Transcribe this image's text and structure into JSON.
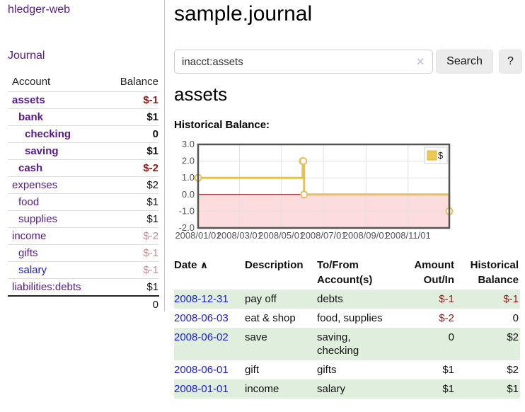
{
  "colors": {
    "link_purple": "#551a8b",
    "link_blue": "#1b1bd3",
    "negative_strong": "#8c1a1a",
    "negative_soft": "#bc8f8f",
    "row_green": "#dfeedd",
    "chart_gold": "#e4c05a",
    "chart_negative_bg": "#fcdcdc",
    "zero_line": "#8b0000"
  },
  "sidebar": {
    "app_title": "hledger-web",
    "nav_journal": "Journal",
    "accounts": {
      "header_account": "Account",
      "header_balance": "Balance",
      "rows": [
        {
          "name": "assets",
          "balance": "$-1",
          "indent": 0,
          "bold": true,
          "name_color": "purple",
          "balance_color": "negative"
        },
        {
          "name": "bank",
          "balance": "$1",
          "indent": 1,
          "bold": true,
          "name_color": "purple",
          "balance_color": "black"
        },
        {
          "name": "checking",
          "balance": "0",
          "indent": 2,
          "bold": true,
          "name_color": "purple",
          "balance_color": "black"
        },
        {
          "name": "saving",
          "balance": "$1",
          "indent": 2,
          "bold": true,
          "name_color": "purple",
          "balance_color": "black"
        },
        {
          "name": "cash",
          "balance": "$-2",
          "indent": 1,
          "bold": true,
          "name_color": "purple",
          "balance_color": "negative"
        },
        {
          "name": "expenses",
          "balance": "$2",
          "indent": 0,
          "bold": false,
          "name_color": "purple",
          "balance_color": "black"
        },
        {
          "name": "food",
          "balance": "$1",
          "indent": 1,
          "bold": false,
          "name_color": "purple",
          "balance_color": "black"
        },
        {
          "name": "supplies",
          "balance": "$1",
          "indent": 1,
          "bold": false,
          "name_color": "purple",
          "balance_color": "black"
        },
        {
          "name": "income",
          "balance": "$-2",
          "indent": 0,
          "bold": false,
          "name_color": "purple",
          "balance_color": "negative_soft"
        },
        {
          "name": "gifts",
          "balance": "$-1",
          "indent": 1,
          "bold": false,
          "name_color": "purple",
          "balance_color": "negative_soft"
        },
        {
          "name": "salary",
          "balance": "$-1",
          "indent": 1,
          "bold": false,
          "name_color": "blue",
          "balance_color": "negative_soft"
        },
        {
          "name": "liabilities:debts",
          "balance": "$1",
          "indent": 0,
          "bold": false,
          "name_color": "purple",
          "balance_color": "black"
        }
      ],
      "total": "0"
    }
  },
  "main": {
    "title": "sample.journal",
    "search": {
      "value": "inacct:assets",
      "clear_icon": "×",
      "search_button": "Search",
      "help_button": "?"
    },
    "account_heading": "assets",
    "register": {
      "headers": {
        "date": "Date",
        "sort_icon": "∧",
        "description": "Description",
        "tofrom": "To/From Account(s)",
        "amount": "Amount Out/In",
        "historical": "Historical Balance"
      },
      "rows": [
        {
          "date": "2008-12-31",
          "description": "pay off",
          "accounts": "debts",
          "amount": "$-1",
          "amount_color": "negative",
          "historical": "$-1",
          "historical_color": "negative"
        },
        {
          "date": "2008-06-03",
          "description": "eat & shop",
          "accounts": "food, supplies",
          "amount": "$-2",
          "amount_color": "negative",
          "historical": "0",
          "historical_color": "black"
        },
        {
          "date": "2008-06-02",
          "description": "save",
          "accounts": "saving, checking",
          "amount": "0",
          "amount_color": "black",
          "historical": "$2",
          "historical_color": "black"
        },
        {
          "date": "2008-06-01",
          "description": "gift",
          "accounts": "gifts",
          "amount": "$1",
          "amount_color": "black",
          "historical": "$2",
          "historical_color": "black"
        },
        {
          "date": "2008-01-01",
          "description": "income",
          "accounts": "salary",
          "amount": "$1",
          "amount_color": "black",
          "historical": "$1",
          "historical_color": "black"
        }
      ]
    }
  },
  "chart_data": {
    "type": "line",
    "step": true,
    "title": "Historical Balance:",
    "x": [
      "2008-01-01",
      "2008-06-01",
      "2008-06-02",
      "2008-06-03",
      "2008-12-31"
    ],
    "series": [
      {
        "name": "$",
        "values": [
          1,
          2,
          2,
          0,
          -1
        ]
      }
    ],
    "xlim": [
      "2008-01-01",
      "2008-12-31"
    ],
    "ylim": [
      -2,
      3
    ],
    "y_tick_labels": [
      "3.0",
      "2.0",
      "1.0",
      "0.0",
      "-1.0",
      "-2.0"
    ],
    "x_tick_dates": [
      "2008-01-01",
      "2008-03-01",
      "2008-05-01",
      "2008-07-01",
      "2008-09-01",
      "2008-11-01"
    ],
    "x_tick_labels": [
      "2008/01/01",
      "2008/03/01",
      "2008/05/01",
      "2008/07/01",
      "2008/09/01",
      "2008/11/01"
    ],
    "legend": {
      "label": "$",
      "position": "top-right"
    },
    "grid": true
  }
}
